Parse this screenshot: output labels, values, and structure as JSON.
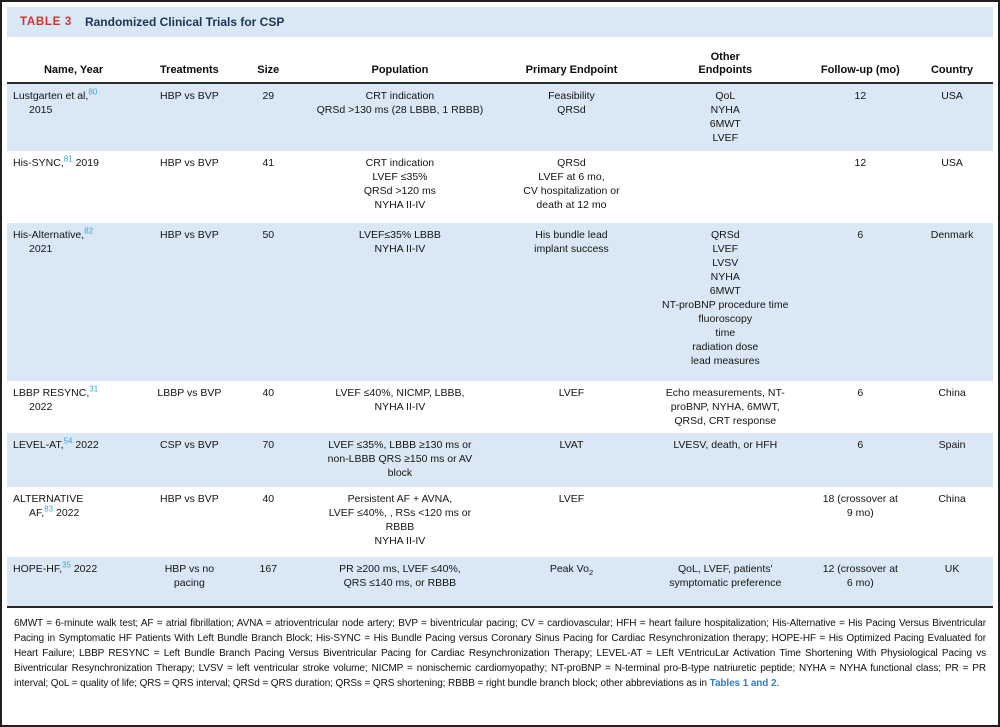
{
  "table": {
    "label": "TABLE 3",
    "title": "Randomized Clinical Trials for CSP",
    "columns": [
      "Name, Year",
      "Treatments",
      "Size",
      "Population",
      "Primary Endpoint",
      "Other\nEndpoints",
      "Follow-up (mo)",
      "Country"
    ],
    "rows": [
      {
        "name": "Lustgarten et al,[80]\n2015",
        "treatments": "HBP vs BVP",
        "size": "29",
        "population": "CRT indication\nQRSd >130 ms (28 LBBB, 1 RBBB)",
        "primary": "Feasibility\nQRSd",
        "other": "QoL\nNYHA\n6MWT\nLVEF",
        "followup": "12",
        "country": "USA"
      },
      {
        "name": "His-SYNC,[81] 2019",
        "treatments": "HBP vs BVP",
        "size": "41",
        "population": "CRT indication\nLVEF ≤35%\nQRSd >120 ms\nNYHA II-IV",
        "primary": "QRSd\nLVEF at 6 mo,\nCV hospitalization or\ndeath at 12 mo",
        "other": "",
        "followup": "12",
        "country": "USA"
      },
      {
        "name": "His-Alternative,[82]\n2021",
        "treatments": "HBP vs BVP",
        "size": "50",
        "population": "LVEF≤35% LBBB\nNYHA II-IV",
        "primary": "His bundle lead\nimplant success",
        "other": "QRSd\nLVEF\nLVSV\nNYHA\n6MWT\nNT-proBNP procedure time\nfluoroscopy\ntime\nradiation dose\nlead measures",
        "followup": "6",
        "country": "Denmark"
      },
      {
        "name": "LBBP RESYNC,[31]\n2022",
        "treatments": "LBBP vs BVP",
        "size": "40",
        "population": "LVEF ≤40%, NICMP, LBBB,\nNYHA II-IV",
        "primary": "LVEF",
        "other": "Echo measurements, NT-\nproBNP, NYHA, 6MWT,\nQRSd, CRT response",
        "followup": "6",
        "country": "China"
      },
      {
        "name": "LEVEL-AT,[54] 2022",
        "treatments": "CSP vs BVP",
        "size": "70",
        "population": "LVEF ≤35%, LBBB ≥130 ms or\nnon-LBBB QRS ≥150 ms or AV\nblock",
        "primary": "LVAT",
        "other": "LVESV, death, or HFH",
        "followup": "6",
        "country": "Spain"
      },
      {
        "name": "ALTERNATIVE\nAF,[83] 2022",
        "treatments": "HBP vs BVP",
        "size": "40",
        "population": "Persistent AF + AVNA,\nLVEF ≤40%, , RSs <120 ms or\nRBBB\nNYHA II-IV",
        "primary": "LVEF",
        "other": "",
        "followup": "18 (crossover at\n9 mo)",
        "country": "China"
      },
      {
        "name": "HOPE-HF,[35] 2022",
        "treatments": "HBP vs no\npacing",
        "size": "167",
        "population": "PR ≥200 ms, LVEF ≤40%,\nQRS ≤140 ms, or RBBB",
        "primary": "Peak Vo{sub:2}",
        "other": "QoL, LVEF, patients'\nsymptomatic preference",
        "followup": "12 (crossover at\n6 mo)",
        "country": "UK"
      }
    ]
  },
  "footnote": {
    "text": "6MWT = 6-minute walk test; AF = atrial fibrillation; AVNA = atrioventricular node artery; BVP = biventricular pacing; CV = cardiovascular; HFH = heart failure hospitalization; His-Alternative = His Pacing Versus Biventricular Pacing in Symptomatic HF Patients With Left Bundle Branch Block; His-SYNC = His Bundle Pacing versus Coronary Sinus Pacing for Cardiac Resynchronization therapy; HOPE-HF = His Optimized Pacing Evaluated for Heart Failure; LBBP RESYNC = Left Bundle Branch Pacing Versus Biventricular Pacing for Cardiac Resynchronization Therapy; LEVEL-AT = LEft VEntricuLar Activation Time Shortening With Physiological Pacing vs Biventricular Resynchronization Therapy; LVSV = left ventricular stroke volume; NICMP = nonischemic cardiomyopathy; NT-proBNP = N-terminal pro-B-type natriuretic peptide; NYHA = NYHA functional class; PR = PR interval; QoL = quality of life; QRS = QRS interval; QRSd = QRS duration; QRSs = QRS shortening; RBBB = right bundle branch block; other abbreviations as in ",
    "link": "Tables 1 and 2",
    "after": "."
  }
}
